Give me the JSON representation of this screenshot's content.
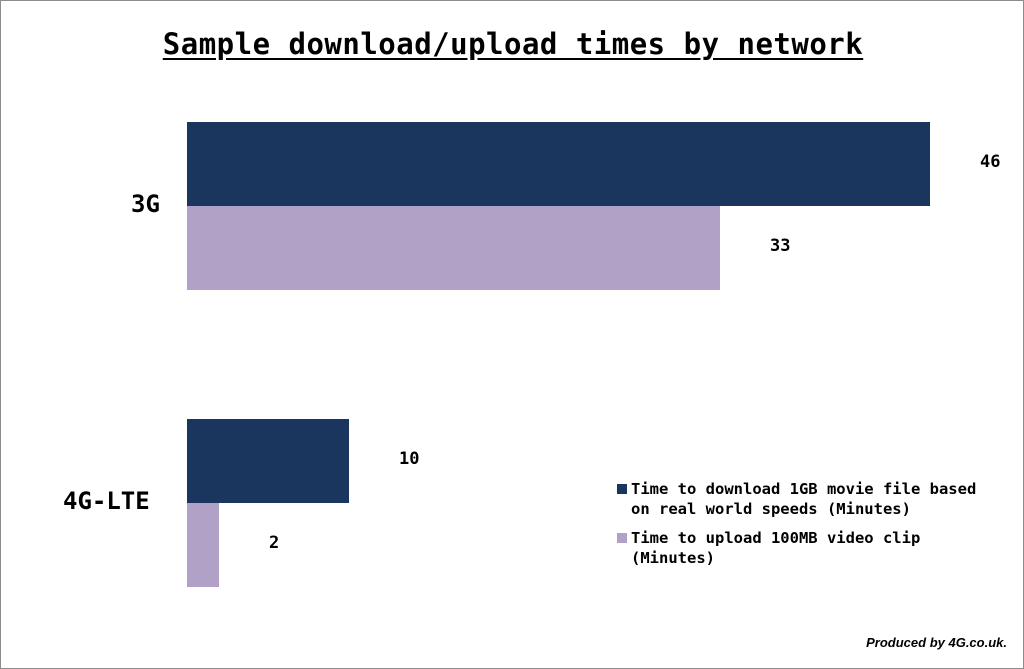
{
  "chart_data": {
    "type": "bar",
    "orientation": "horizontal",
    "title": "Sample download/upload times by network",
    "categories": [
      "3G",
      "4G-LTE"
    ],
    "series": [
      {
        "name": "Time to download 1GB movie file based on real world speeds (Minutes)",
        "values": [
          46,
          10
        ],
        "color": "#1b365e"
      },
      {
        "name": "Time to upload 100MB video clip (Minutes)",
        "values": [
          33,
          2
        ],
        "color": "#b2a1c7"
      }
    ],
    "data_labels": [
      "46",
      "33",
      "10",
      "2"
    ],
    "xlim": [
      0,
      46
    ],
    "grid": false,
    "legend_position": "bottom-right"
  },
  "footer": {
    "credit": "Produced by 4G.co.uk."
  }
}
